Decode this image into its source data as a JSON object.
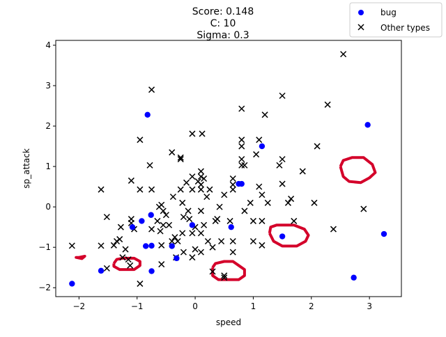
{
  "chart_data": {
    "type": "scatter",
    "title_lines": [
      "Score: 0.148",
      "C: 10",
      "Sigma: 0.3"
    ],
    "xlabel": "speed",
    "ylabel": "sp_attack",
    "xlim": [
      -2.4,
      3.55
    ],
    "ylim": [
      -2.22,
      4.12
    ],
    "xticks": [
      -2,
      -1,
      0,
      1,
      2,
      3
    ],
    "yticks": [
      -2,
      -1,
      0,
      1,
      2,
      3,
      4
    ],
    "xtick_labels": [
      "−2",
      "−1",
      "0",
      "1",
      "2",
      "3"
    ],
    "ytick_labels": [
      "−2",
      "−1",
      "0",
      "1",
      "2",
      "3",
      "4"
    ],
    "legend": {
      "placement": "top-right",
      "entries": [
        "bug",
        "Other types"
      ]
    },
    "colors": {
      "bug": "#0000ff",
      "other": "#000000",
      "boundary": "#d4002a"
    },
    "series": [
      {
        "name": "bug",
        "marker": "circle",
        "points": [
          [
            -2.12,
            -1.9
          ],
          [
            -1.62,
            -1.58
          ],
          [
            -1.08,
            -0.5
          ],
          [
            -0.92,
            -0.35
          ],
          [
            -0.85,
            -0.97
          ],
          [
            -0.82,
            2.28
          ],
          [
            -0.76,
            -0.2
          ],
          [
            -0.75,
            -0.96
          ],
          [
            -0.75,
            -1.59
          ],
          [
            -0.4,
            -0.97
          ],
          [
            -0.32,
            -1.27
          ],
          [
            -0.05,
            -0.45
          ],
          [
            0.62,
            -0.5
          ],
          [
            0.75,
            0.57
          ],
          [
            0.8,
            0.57
          ],
          [
            1.15,
            1.5
          ],
          [
            1.5,
            -0.73
          ],
          [
            2.73,
            -1.75
          ],
          [
            2.97,
            2.03
          ],
          [
            3.25,
            -0.67
          ]
        ]
      },
      {
        "name": "Other types",
        "marker": "x",
        "points": [
          [
            -2.12,
            -0.96
          ],
          [
            -1.62,
            -0.96
          ],
          [
            -1.62,
            0.43
          ],
          [
            -1.52,
            -1.52
          ],
          [
            -1.52,
            -0.25
          ],
          [
            -1.4,
            -0.95
          ],
          [
            -1.35,
            -0.85
          ],
          [
            -1.3,
            -0.8
          ],
          [
            -1.28,
            -0.5
          ],
          [
            -1.25,
            -1.25
          ],
          [
            -1.2,
            -1.05
          ],
          [
            -1.15,
            -1.3
          ],
          [
            -1.12,
            -1.45
          ],
          [
            -1.1,
            -0.3
          ],
          [
            -1.1,
            0.65
          ],
          [
            -1.1,
            -0.4
          ],
          [
            -1.05,
            -0.55
          ],
          [
            -0.95,
            1.66
          ],
          [
            -0.95,
            0.43
          ],
          [
            -0.95,
            -1.9
          ],
          [
            -0.78,
            1.03
          ],
          [
            -0.75,
            2.9
          ],
          [
            -0.75,
            0.43
          ],
          [
            -0.75,
            -0.55
          ],
          [
            -0.65,
            -0.35
          ],
          [
            -0.62,
            0.0
          ],
          [
            -0.6,
            -0.6
          ],
          [
            -0.58,
            -0.95
          ],
          [
            -0.58,
            -1.42
          ],
          [
            -0.58,
            0.05
          ],
          [
            -0.55,
            -0.45
          ],
          [
            -0.55,
            -0.1
          ],
          [
            -0.5,
            -0.2
          ],
          [
            -0.45,
            -0.45
          ],
          [
            -0.4,
            1.35
          ],
          [
            -0.4,
            -0.85
          ],
          [
            -0.38,
            0.25
          ],
          [
            -0.35,
            -0.75
          ],
          [
            -0.33,
            -1.25
          ],
          [
            -0.3,
            -0.85
          ],
          [
            -0.25,
            1.22
          ],
          [
            -0.25,
            1.18
          ],
          [
            -0.25,
            0.43
          ],
          [
            -0.22,
            0.1
          ],
          [
            -0.22,
            -0.65
          ],
          [
            -0.2,
            -0.25
          ],
          [
            -0.2,
            -1.12
          ],
          [
            -0.15,
            0.6
          ],
          [
            -0.12,
            -0.1
          ],
          [
            -0.1,
            -0.3
          ],
          [
            -0.05,
            1.81
          ],
          [
            -0.05,
            0.75
          ],
          [
            -0.05,
            0.43
          ],
          [
            -0.05,
            -0.65
          ],
          [
            -0.05,
            -1.25
          ],
          [
            0.0,
            -1.05
          ],
          [
            0.0,
            -0.5
          ],
          [
            0.05,
            0.63
          ],
          [
            0.1,
            0.75
          ],
          [
            0.1,
            0.55
          ],
          [
            0.1,
            0.43
          ],
          [
            0.1,
            -0.1
          ],
          [
            0.1,
            -0.65
          ],
          [
            0.1,
            -1.12
          ],
          [
            0.1,
            0.88
          ],
          [
            0.12,
            1.81
          ],
          [
            0.15,
            0.7
          ],
          [
            0.15,
            -0.45
          ],
          [
            0.2,
            0.25
          ],
          [
            0.22,
            -0.85
          ],
          [
            0.25,
            0.43
          ],
          [
            0.3,
            -1.0
          ],
          [
            0.3,
            -1.6
          ],
          [
            0.35,
            -0.35
          ],
          [
            0.38,
            -0.3
          ],
          [
            0.42,
            0.0
          ],
          [
            0.45,
            -0.85
          ],
          [
            0.5,
            0.3
          ],
          [
            0.5,
            -1.7
          ],
          [
            0.5,
            -1.75
          ],
          [
            0.6,
            -0.35
          ],
          [
            0.65,
            0.7
          ],
          [
            0.65,
            0.55
          ],
          [
            0.65,
            0.43
          ],
          [
            0.65,
            -0.85
          ],
          [
            0.65,
            -1.12
          ],
          [
            0.8,
            1.66
          ],
          [
            0.8,
            1.5
          ],
          [
            0.8,
            1.18
          ],
          [
            0.8,
            1.03
          ],
          [
            0.8,
            2.43
          ],
          [
            0.85,
            1.03
          ],
          [
            0.85,
            -0.1
          ],
          [
            0.95,
            0.1
          ],
          [
            1.0,
            -0.35
          ],
          [
            1.0,
            -0.85
          ],
          [
            1.05,
            1.3
          ],
          [
            1.1,
            1.66
          ],
          [
            1.1,
            0.5
          ],
          [
            1.15,
            0.3
          ],
          [
            1.15,
            -0.35
          ],
          [
            1.15,
            -0.95
          ],
          [
            1.2,
            2.28
          ],
          [
            1.25,
            0.1
          ],
          [
            1.45,
            1.03
          ],
          [
            1.5,
            1.18
          ],
          [
            1.5,
            0.57
          ],
          [
            1.5,
            2.75
          ],
          [
            1.6,
            0.1
          ],
          [
            1.65,
            0.2
          ],
          [
            1.7,
            -0.35
          ],
          [
            1.85,
            0.88
          ],
          [
            2.05,
            0.1
          ],
          [
            2.1,
            1.5
          ],
          [
            2.28,
            2.53
          ],
          [
            2.38,
            -0.55
          ],
          [
            2.55,
            3.78
          ],
          [
            2.9,
            -0.05
          ]
        ]
      }
    ],
    "decision_boundary": {
      "color": "#d4002a",
      "contours": [
        [
          [
            -2.0,
            -1.25
          ],
          [
            -1.9,
            -1.22
          ],
          [
            -1.95,
            -1.28
          ],
          [
            -2.05,
            -1.25
          ],
          [
            -2.0,
            -1.25
          ]
        ],
        [
          [
            -1.4,
            -1.4
          ],
          [
            -1.35,
            -1.3
          ],
          [
            -1.25,
            -1.27
          ],
          [
            -1.05,
            -1.27
          ],
          [
            -0.95,
            -1.35
          ],
          [
            -0.95,
            -1.45
          ],
          [
            -1.05,
            -1.55
          ],
          [
            -1.3,
            -1.55
          ],
          [
            -1.4,
            -1.47
          ],
          [
            -1.4,
            -1.4
          ]
        ],
        [
          [
            0.3,
            -1.5
          ],
          [
            0.35,
            -1.4
          ],
          [
            0.5,
            -1.35
          ],
          [
            0.65,
            -1.35
          ],
          [
            0.75,
            -1.45
          ],
          [
            0.85,
            -1.55
          ],
          [
            0.85,
            -1.7
          ],
          [
            0.75,
            -1.8
          ],
          [
            0.4,
            -1.8
          ],
          [
            0.3,
            -1.7
          ],
          [
            0.3,
            -1.5
          ]
        ],
        [
          [
            1.28,
            -0.65
          ],
          [
            1.3,
            -0.5
          ],
          [
            1.4,
            -0.45
          ],
          [
            1.7,
            -0.45
          ],
          [
            1.88,
            -0.55
          ],
          [
            1.95,
            -0.7
          ],
          [
            1.9,
            -0.85
          ],
          [
            1.75,
            -0.97
          ],
          [
            1.5,
            -0.97
          ],
          [
            1.35,
            -0.85
          ],
          [
            1.28,
            -0.65
          ]
        ],
        [
          [
            2.5,
            1.0
          ],
          [
            2.55,
            1.15
          ],
          [
            2.7,
            1.22
          ],
          [
            2.9,
            1.22
          ],
          [
            3.05,
            1.05
          ],
          [
            3.1,
            0.85
          ],
          [
            3.0,
            0.72
          ],
          [
            2.85,
            0.6
          ],
          [
            2.65,
            0.63
          ],
          [
            2.55,
            0.75
          ],
          [
            2.5,
            1.0
          ]
        ]
      ]
    }
  }
}
